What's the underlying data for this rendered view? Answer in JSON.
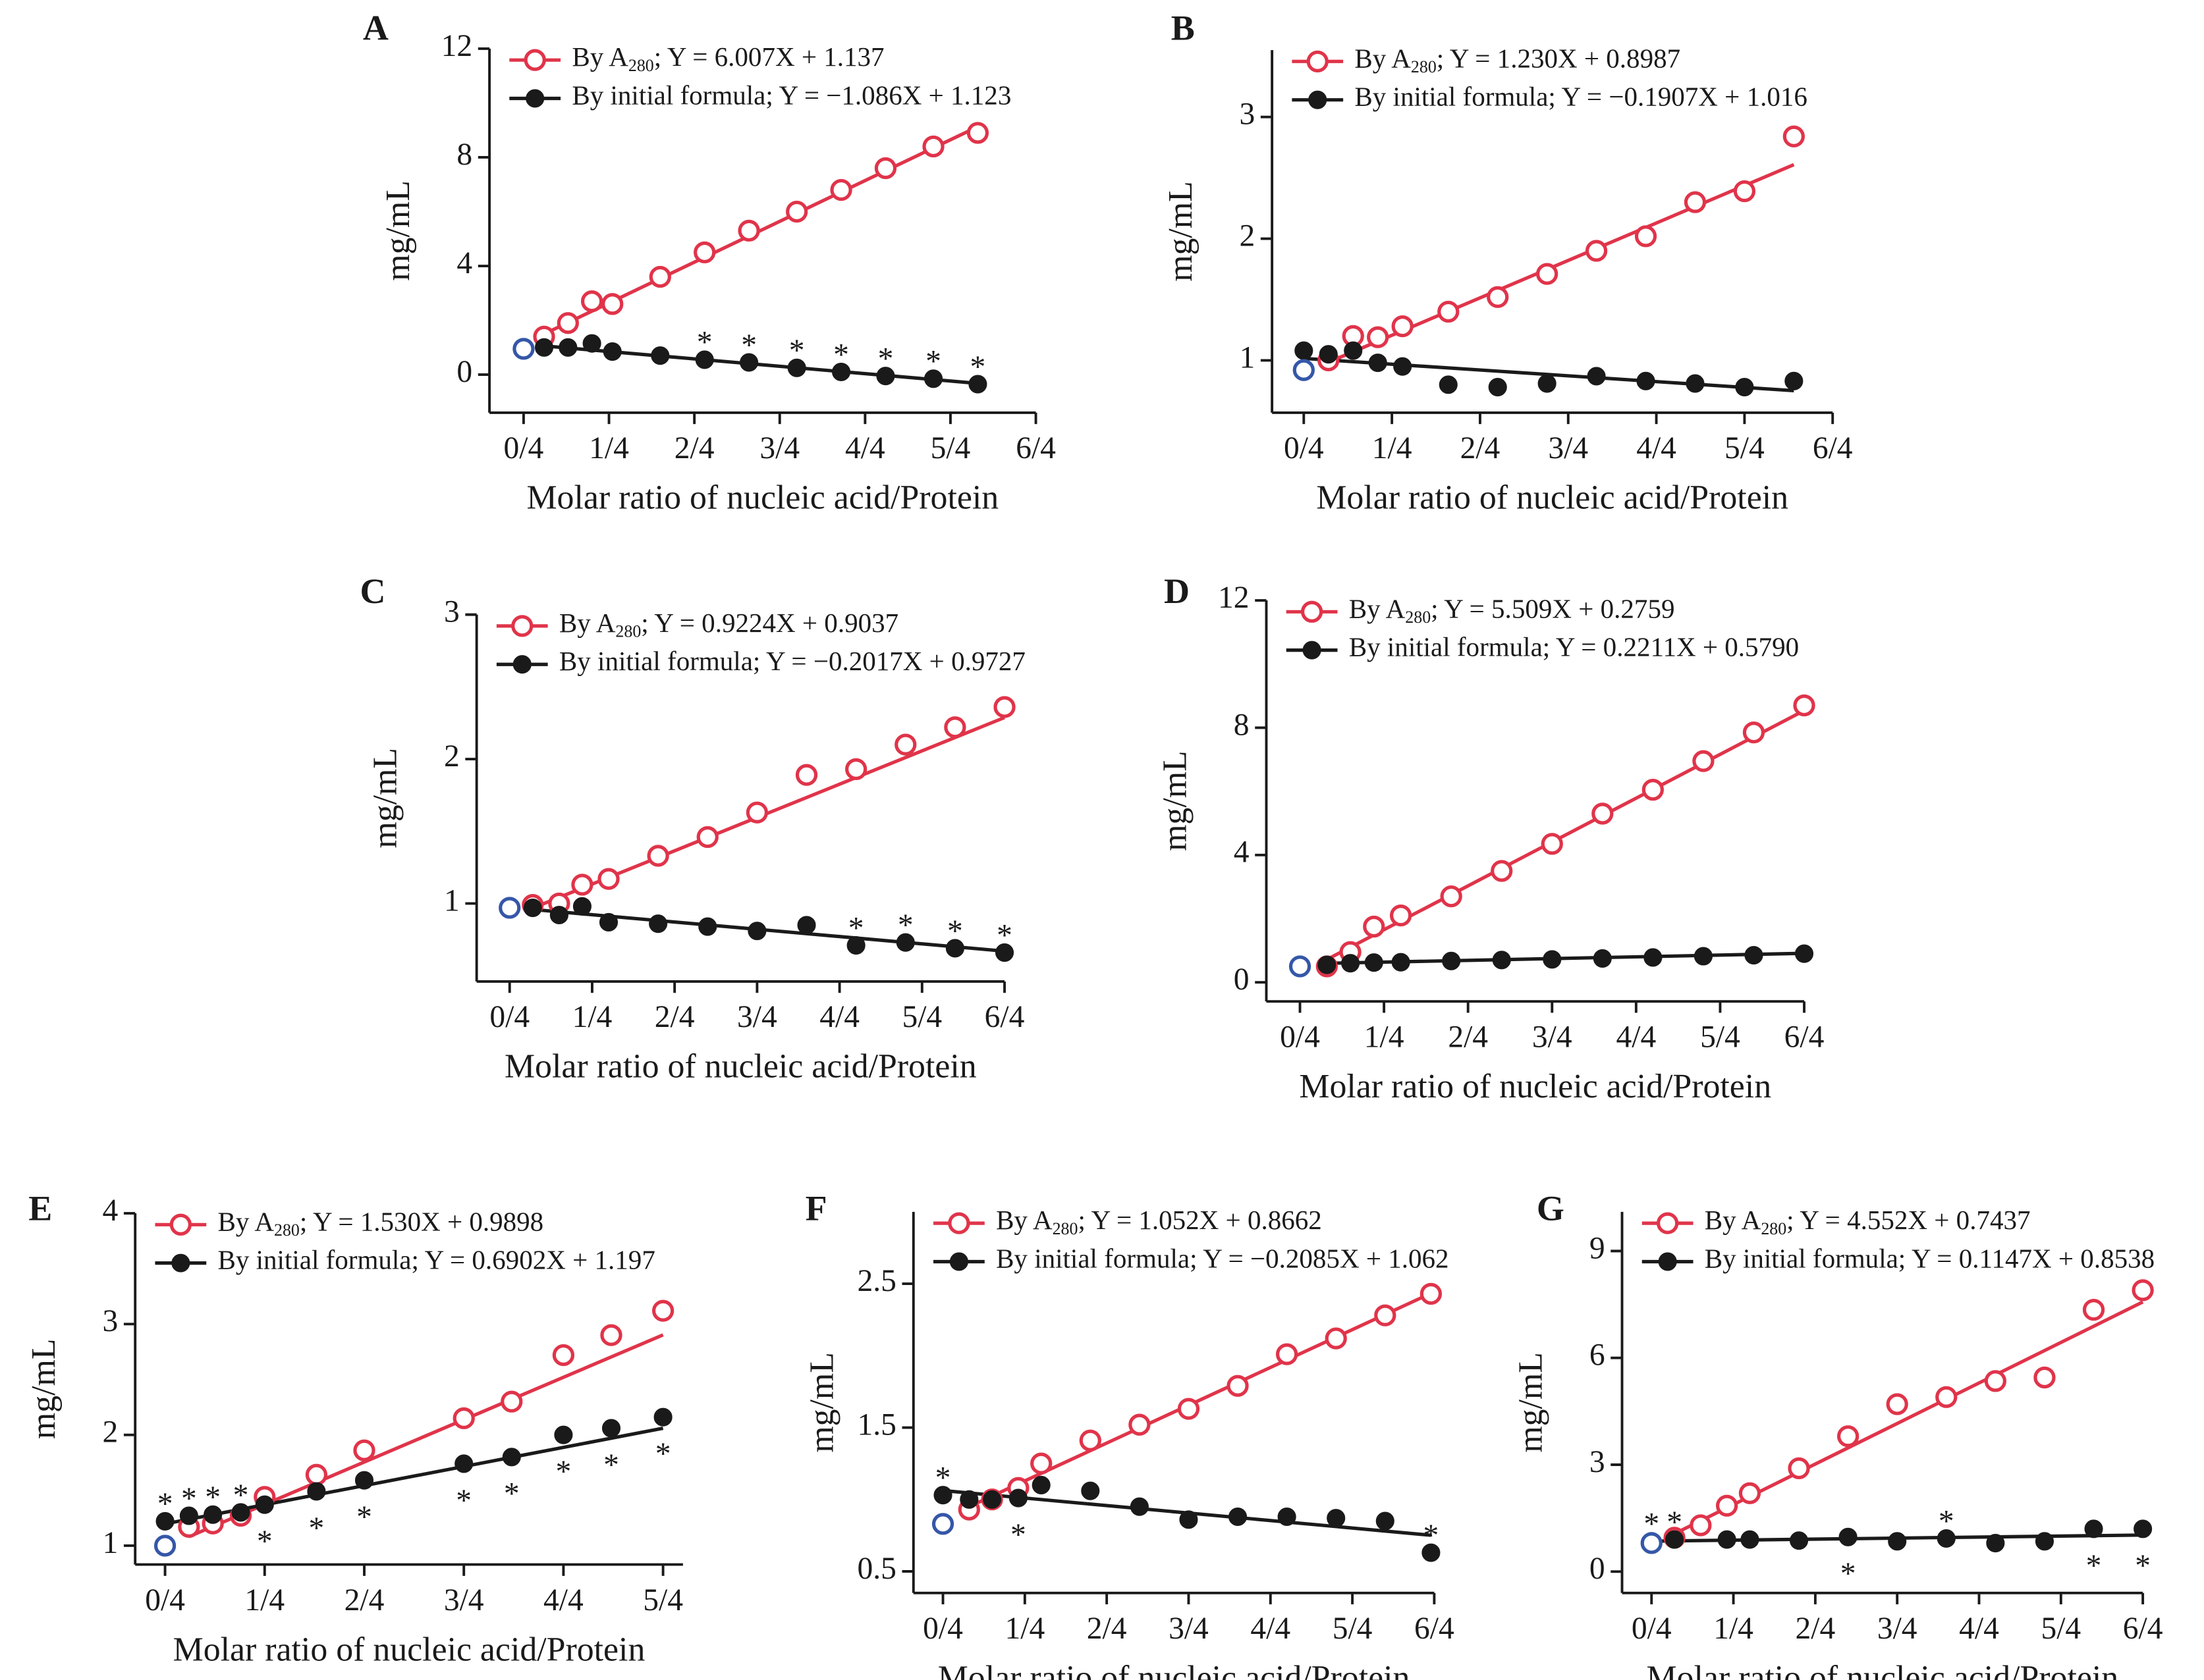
{
  "chart_data": [
    {
      "type": "scatter",
      "panel_label": "A",
      "xlabel": "Molar ratio of nucleic acid/Protein",
      "ylabel": "mg/mL",
      "star": "*",
      "xlim": [
        -0.1,
        1.5
      ],
      "ylim": [
        -1.4,
        12
      ],
      "xticks": [
        {
          "value": 0,
          "label": "0/4"
        },
        {
          "value": 0.25,
          "label": "1/4"
        },
        {
          "value": 0.5,
          "label": "2/4"
        },
        {
          "value": 0.75,
          "label": "3/4"
        },
        {
          "value": 1,
          "label": "4/4"
        },
        {
          "value": 1.25,
          "label": "5/4"
        },
        {
          "value": 1.5,
          "label": "6/4"
        }
      ],
      "yticks": [
        0,
        4,
        8,
        12
      ],
      "origin_point": {
        "x": 0,
        "y": 0.95,
        "color": "#3557a8"
      },
      "series": [
        {
          "name": "By A",
          "name_sub": "280",
          "equation": "; Y = 6.007X + 1.137",
          "color": "#e0344a",
          "fit": {
            "slope": 6.007,
            "intercept": 1.137
          },
          "x": [
            0.06,
            0.13,
            0.2,
            0.26,
            0.4,
            0.53,
            0.66,
            0.8,
            0.93,
            1.06,
            1.2,
            1.33
          ],
          "values": [
            1.4,
            1.9,
            2.7,
            2.6,
            3.6,
            4.5,
            5.3,
            6.0,
            6.8,
            7.6,
            8.4,
            8.9
          ]
        },
        {
          "name": "By initial formula; Y = −1.086X + 1.123",
          "color": "#1a1a1a",
          "fit": {
            "slope": -1.086,
            "intercept": 1.123
          },
          "x": [
            0.06,
            0.13,
            0.2,
            0.26,
            0.4,
            0.53,
            0.66,
            0.8,
            0.93,
            1.06,
            1.2,
            1.33
          ],
          "values": [
            1.0,
            1.0,
            1.15,
            0.85,
            0.7,
            0.55,
            0.45,
            0.25,
            0.1,
            -0.05,
            -0.15,
            -0.35
          ],
          "starred": [
            5,
            6,
            7,
            8,
            9,
            10,
            11
          ]
        }
      ]
    },
    {
      "type": "scatter",
      "panel_label": "B",
      "xlabel": "Molar ratio of nucleic acid/Protein",
      "ylabel": "mg/mL",
      "star": "*",
      "xlim": [
        -0.09,
        1.5
      ],
      "ylim": [
        0.57,
        3.55
      ],
      "xticks": [
        {
          "value": 0,
          "label": "0/4"
        },
        {
          "value": 0.25,
          "label": "1/4"
        },
        {
          "value": 0.5,
          "label": "2/4"
        },
        {
          "value": 0.75,
          "label": "3/4"
        },
        {
          "value": 1,
          "label": "4/4"
        },
        {
          "value": 1.25,
          "label": "5/4"
        },
        {
          "value": 1.5,
          "label": "6/4"
        }
      ],
      "yticks": [
        1,
        2,
        3
      ],
      "origin_point": {
        "x": 0,
        "y": 0.92,
        "color": "#3557a8"
      },
      "series": [
        {
          "name": "By A",
          "name_sub": "280",
          "equation": "; Y = 1.230X + 0.8987",
          "color": "#e0344a",
          "fit": {
            "slope": 1.23,
            "intercept": 0.8987
          },
          "x": [
            0.07,
            0.14,
            0.21,
            0.28,
            0.41,
            0.55,
            0.69,
            0.83,
            0.97,
            1.11,
            1.25,
            1.39
          ],
          "values": [
            1.0,
            1.2,
            1.19,
            1.28,
            1.4,
            1.52,
            1.71,
            1.9,
            2.02,
            2.3,
            2.39,
            2.84
          ]
        },
        {
          "name": "By initial formula; Y = −0.1907X + 1.016",
          "color": "#1a1a1a",
          "fit": {
            "slope": -0.1907,
            "intercept": 1.016
          },
          "x": [
            0,
            0.07,
            0.14,
            0.21,
            0.28,
            0.41,
            0.55,
            0.69,
            0.83,
            0.97,
            1.11,
            1.25,
            1.39
          ],
          "values": [
            1.08,
            1.05,
            1.08,
            0.98,
            0.95,
            0.8,
            0.78,
            0.81,
            0.87,
            0.83,
            0.81,
            0.78,
            0.83
          ],
          "starred": []
        }
      ]
    },
    {
      "type": "scatter",
      "panel_label": "C",
      "xlabel": "Molar ratio of nucleic acid/Protein",
      "ylabel": "mg/mL",
      "star": "*",
      "xlim": [
        -0.1,
        1.5
      ],
      "ylim": [
        0.46,
        3
      ],
      "xticks": [
        {
          "value": 0,
          "label": "0/4"
        },
        {
          "value": 0.25,
          "label": "1/4"
        },
        {
          "value": 0.5,
          "label": "2/4"
        },
        {
          "value": 0.75,
          "label": "3/4"
        },
        {
          "value": 1,
          "label": "4/4"
        },
        {
          "value": 1.25,
          "label": "5/4"
        },
        {
          "value": 1.5,
          "label": "6/4"
        }
      ],
      "yticks": [
        1,
        2,
        3
      ],
      "origin_point": {
        "x": 0,
        "y": 0.97,
        "color": "#3557a8"
      },
      "series": [
        {
          "name": "By A",
          "name_sub": "280",
          "equation": "; Y = 0.9224X + 0.9037",
          "color": "#e0344a",
          "fit": {
            "slope": 0.9224,
            "intercept": 0.9037
          },
          "x": [
            0.07,
            0.15,
            0.22,
            0.3,
            0.45,
            0.6,
            0.75,
            0.9,
            1.05,
            1.2,
            1.35,
            1.5
          ],
          "values": [
            0.99,
            1.0,
            1.13,
            1.17,
            1.33,
            1.46,
            1.63,
            1.89,
            1.93,
            2.1,
            2.22,
            2.36
          ]
        },
        {
          "name": "By initial formula; Y = −0.2017X + 0.9727",
          "color": "#1a1a1a",
          "fit": {
            "slope": -0.2017,
            "intercept": 0.9727
          },
          "x": [
            0.07,
            0.15,
            0.22,
            0.3,
            0.45,
            0.6,
            0.75,
            0.9,
            1.05,
            1.2,
            1.35,
            1.5
          ],
          "values": [
            0.97,
            0.92,
            0.98,
            0.87,
            0.86,
            0.84,
            0.81,
            0.85,
            0.71,
            0.73,
            0.69,
            0.66
          ],
          "starred": [
            8,
            9,
            10,
            11
          ]
        }
      ]
    },
    {
      "type": "scatter",
      "panel_label": "D",
      "xlabel": "Molar ratio of nucleic acid/Protein",
      "ylabel": "mg/mL",
      "star": "*",
      "xlim": [
        -0.1,
        1.5
      ],
      "ylim": [
        -0.6,
        12
      ],
      "xticks": [
        {
          "value": 0,
          "label": "0/4"
        },
        {
          "value": 0.25,
          "label": "1/4"
        },
        {
          "value": 0.5,
          "label": "2/4"
        },
        {
          "value": 0.75,
          "label": "3/4"
        },
        {
          "value": 1,
          "label": "4/4"
        },
        {
          "value": 1.25,
          "label": "5/4"
        },
        {
          "value": 1.5,
          "label": "6/4"
        }
      ],
      "yticks": [
        0,
        4,
        8,
        12
      ],
      "origin_point": {
        "x": 0,
        "y": 0.5,
        "color": "#3557a8"
      },
      "series": [
        {
          "name": "By A",
          "name_sub": "280",
          "equation": "; Y = 5.509X + 0.2759",
          "color": "#e0344a",
          "fit": {
            "slope": 5.509,
            "intercept": 0.2759
          },
          "x": [
            0.08,
            0.15,
            0.22,
            0.3,
            0.45,
            0.6,
            0.75,
            0.9,
            1.05,
            1.2,
            1.35,
            1.5
          ],
          "values": [
            0.5,
            0.95,
            1.75,
            2.1,
            2.7,
            3.5,
            4.35,
            5.3,
            6.05,
            6.95,
            7.85,
            8.7
          ]
        },
        {
          "name": "By initial formula; Y = 0.2211X + 0.5790",
          "color": "#1a1a1a",
          "fit": {
            "slope": 0.2211,
            "intercept": 0.579
          },
          "x": [
            0.08,
            0.15,
            0.22,
            0.3,
            0.45,
            0.6,
            0.75,
            0.9,
            1.05,
            1.2,
            1.35,
            1.5
          ],
          "values": [
            0.55,
            0.6,
            0.62,
            0.63,
            0.67,
            0.7,
            0.72,
            0.75,
            0.78,
            0.82,
            0.85,
            0.9
          ],
          "starred": []
        }
      ]
    },
    {
      "type": "scatter",
      "panel_label": "E",
      "xlabel": "Molar ratio of nucleic acid/Protein",
      "ylabel": "mg/mL",
      "star": "*",
      "xlim": [
        -0.075,
        1.3
      ],
      "ylim": [
        0.83,
        4
      ],
      "xticks": [
        {
          "value": 0,
          "label": "0/4"
        },
        {
          "value": 0.25,
          "label": "1/4"
        },
        {
          "value": 0.5,
          "label": "2/4"
        },
        {
          "value": 0.75,
          "label": "3/4"
        },
        {
          "value": 1,
          "label": "4/4"
        },
        {
          "value": 1.25,
          "label": "5/4"
        }
      ],
      "yticks": [
        1,
        2,
        3,
        4
      ],
      "origin_point": {
        "x": 0,
        "y": 1.0,
        "color": "#3557a8"
      },
      "series": [
        {
          "name": "By A",
          "name_sub": "280",
          "equation": "; Y = 1.530X + 0.9898",
          "color": "#e0344a",
          "fit": {
            "slope": 1.53,
            "intercept": 0.9898
          },
          "x": [
            0.06,
            0.12,
            0.19,
            0.25,
            0.38,
            0.5,
            0.75,
            0.87,
            1.0,
            1.12,
            1.25
          ],
          "values": [
            1.17,
            1.2,
            1.27,
            1.44,
            1.64,
            1.86,
            2.15,
            2.3,
            2.72,
            2.9,
            3.12
          ]
        },
        {
          "name": "By initial formula; Y = 0.6902X + 1.197",
          "color": "#1a1a1a",
          "fit": {
            "slope": 0.6902,
            "intercept": 1.197
          },
          "x": [
            0,
            0.06,
            0.12,
            0.19,
            0.25,
            0.38,
            0.5,
            0.75,
            0.87,
            1.0,
            1.12,
            1.25
          ],
          "values": [
            1.22,
            1.27,
            1.28,
            1.3,
            1.37,
            1.49,
            1.59,
            1.74,
            1.8,
            2.0,
            2.06,
            2.16
          ],
          "starred": [
            0,
            1,
            2,
            3,
            4,
            5,
            6,
            7,
            8,
            9,
            10,
            11
          ]
        }
      ]
    },
    {
      "type": "scatter",
      "panel_label": "F",
      "xlabel": "Molar ratio of nucleic acid/Protein",
      "ylabel": "mg/mL",
      "star": "*",
      "xlim": [
        -0.09,
        1.5
      ],
      "ylim": [
        0.35,
        3
      ],
      "xticks": [
        {
          "value": 0,
          "label": "0/4"
        },
        {
          "value": 0.25,
          "label": "1/4"
        },
        {
          "value": 0.5,
          "label": "2/4"
        },
        {
          "value": 0.75,
          "label": "3/4"
        },
        {
          "value": 1,
          "label": "4/4"
        },
        {
          "value": 1.25,
          "label": "5/4"
        },
        {
          "value": 1.5,
          "label": "6/4"
        }
      ],
      "yticks": [
        0.5,
        1.5,
        2.5
      ],
      "origin_point": {
        "x": 0,
        "y": 0.83,
        "color": "#3557a8"
      },
      "series": [
        {
          "name": "By A",
          "name_sub": "280",
          "equation": "; Y = 1.052X + 0.8662",
          "color": "#e0344a",
          "fit": {
            "slope": 1.052,
            "intercept": 0.8662
          },
          "x": [
            0.08,
            0.15,
            0.23,
            0.3,
            0.45,
            0.6,
            0.75,
            0.9,
            1.05,
            1.2,
            1.35,
            1.49
          ],
          "values": [
            0.93,
            1.0,
            1.08,
            1.25,
            1.41,
            1.52,
            1.63,
            1.79,
            2.01,
            2.12,
            2.28,
            2.43
          ]
        },
        {
          "name": "By initial formula; Y = −0.2085X + 1.062",
          "color": "#1a1a1a",
          "fit": {
            "slope": -0.2085,
            "intercept": 1.062
          },
          "x": [
            0,
            0.08,
            0.15,
            0.23,
            0.3,
            0.45,
            0.6,
            0.75,
            0.9,
            1.05,
            1.2,
            1.35,
            1.49
          ],
          "values": [
            1.03,
            1.0,
            1.0,
            1.01,
            1.1,
            1.06,
            0.95,
            0.86,
            0.88,
            0.88,
            0.87,
            0.85,
            0.63
          ],
          "starred": [
            0,
            3,
            12
          ]
        }
      ]
    },
    {
      "type": "scatter",
      "panel_label": "G",
      "xlabel": "Molar ratio of nucleic acid/Protein",
      "ylabel": "mg/mL",
      "star": "*",
      "xlim": [
        -0.09,
        1.5
      ],
      "ylim": [
        -0.6,
        10.1
      ],
      "xticks": [
        {
          "value": 0,
          "label": "0/4"
        },
        {
          "value": 0.25,
          "label": "1/4"
        },
        {
          "value": 0.5,
          "label": "2/4"
        },
        {
          "value": 0.75,
          "label": "3/4"
        },
        {
          "value": 1,
          "label": "4/4"
        },
        {
          "value": 1.25,
          "label": "5/4"
        },
        {
          "value": 1.5,
          "label": "6/4"
        }
      ],
      "yticks": [
        0,
        3,
        6,
        9
      ],
      "origin_point": {
        "x": 0,
        "y": 0.8,
        "color": "#3557a8"
      },
      "series": [
        {
          "name": "By A",
          "name_sub": "280",
          "equation": "; Y = 4.552X + 0.7437",
          "color": "#e0344a",
          "fit": {
            "slope": 4.552,
            "intercept": 0.7437
          },
          "x": [
            0.07,
            0.15,
            0.23,
            0.3,
            0.45,
            0.6,
            0.75,
            0.9,
            1.05,
            1.2,
            1.35,
            1.5
          ],
          "values": [
            0.95,
            1.3,
            1.85,
            2.2,
            2.9,
            3.8,
            4.7,
            4.9,
            5.35,
            5.45,
            7.35,
            7.9
          ]
        },
        {
          "name": "By initial formula; Y = 0.1147X + 0.8538",
          "color": "#1a1a1a",
          "fit": {
            "slope": 0.1147,
            "intercept": 0.8538
          },
          "x": [
            0,
            0.07,
            0.23,
            0.3,
            0.45,
            0.6,
            0.75,
            0.9,
            1.05,
            1.2,
            1.35,
            1.5
          ],
          "values": [
            0.85,
            0.9,
            0.9,
            0.9,
            0.87,
            0.97,
            0.85,
            0.93,
            0.8,
            0.85,
            1.2,
            1.2
          ],
          "starred": [
            0,
            1,
            5,
            7,
            10,
            11
          ]
        }
      ]
    }
  ]
}
